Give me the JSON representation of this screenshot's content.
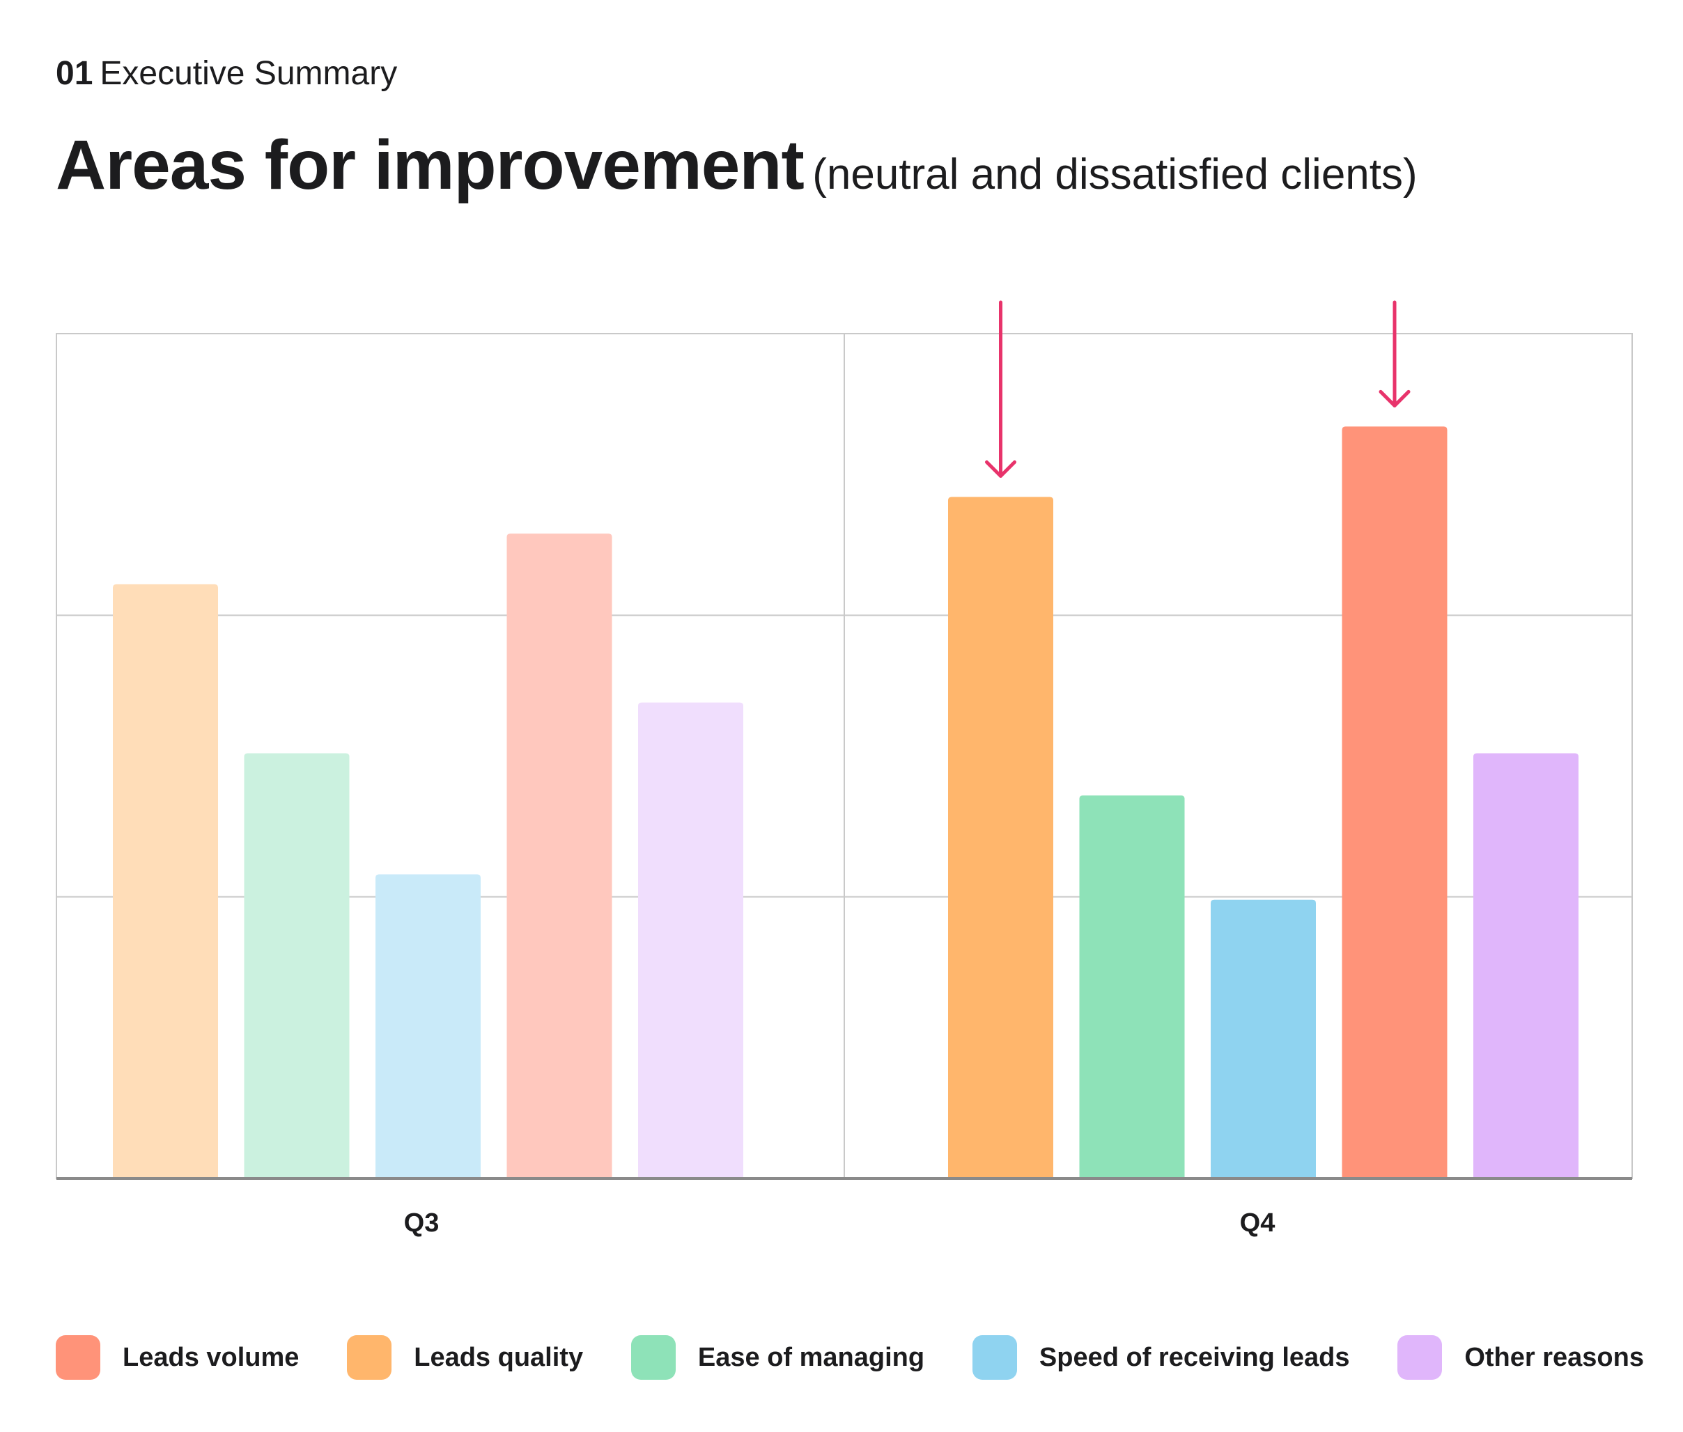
{
  "header": {
    "section_number": "01",
    "section_title": "Executive Summary",
    "title": "Areas for improvement",
    "subtitle": "(neutral and dissatisfied clients)"
  },
  "colors": {
    "Leads volume": {
      "strong": "#FF9379",
      "light": "#FFC8BE"
    },
    "Leads quality": {
      "strong": "#FFB66C",
      "light": "#FFDDB8"
    },
    "Ease of managing": {
      "strong": "#8EE2B8",
      "light": "#CBF1DF"
    },
    "Speed of receiving leads": {
      "strong": "#8FD3F0",
      "light": "#C9EAF9"
    },
    "Other reasons": {
      "strong": "#E0B6FB",
      "light": "#F0DEFD"
    },
    "highlight_arrow": "#E8336B",
    "grid": "#C9C9C9",
    "axis": "#8A8A8A"
  },
  "chart_data": {
    "type": "bar",
    "title": "Areas for improvement",
    "subtitle": "(neutral and dissatisfied clients)",
    "categories": [
      "Q3",
      "Q4"
    ],
    "ylim": [
      0,
      3
    ],
    "grid": true,
    "legend_position": "bottom",
    "series": [
      {
        "name": "Leads quality",
        "values": [
          2.11,
          2.42
        ]
      },
      {
        "name": "Ease of managing",
        "values": [
          1.51,
          1.36
        ]
      },
      {
        "name": "Speed of receiving leads",
        "values": [
          1.08,
          0.99
        ]
      },
      {
        "name": "Leads volume",
        "values": [
          2.29,
          2.67
        ]
      },
      {
        "name": "Other reasons",
        "values": [
          1.69,
          1.51
        ]
      }
    ],
    "highlighted": [
      {
        "category": "Q4",
        "series": "Leads quality"
      },
      {
        "category": "Q4",
        "series": "Leads volume"
      }
    ],
    "emphasized_category": "Q4"
  },
  "legend": [
    {
      "label": "Leads volume",
      "color": "#FF9379"
    },
    {
      "label": "Leads quality",
      "color": "#FFB66C"
    },
    {
      "label": "Ease of managing",
      "color": "#8EE2B8"
    },
    {
      "label": "Speed of receiving leads",
      "color": "#8FD3F0"
    },
    {
      "label": "Other reasons",
      "color": "#E0B6FB"
    }
  ]
}
